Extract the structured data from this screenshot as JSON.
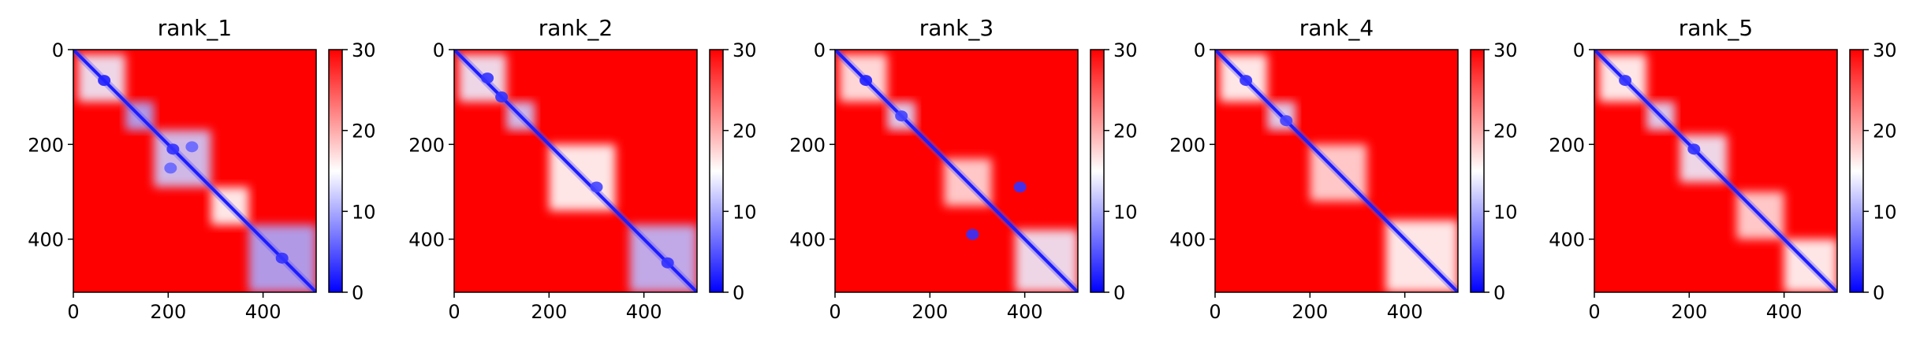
{
  "figure": {
    "colormap": {
      "name": "bwr",
      "low": "#0000ff",
      "mid": "#ffffff",
      "high": "#ff0000"
    }
  },
  "chart_data": [
    {
      "type": "heatmap",
      "title": "rank_1",
      "xlim": [
        0,
        512
      ],
      "ylim": [
        512,
        0
      ],
      "xticks": [
        0,
        200,
        400
      ],
      "yticks": [
        0,
        200,
        400
      ],
      "colorbar": {
        "range": [
          0,
          30
        ],
        "ticks": [
          0,
          10,
          20,
          30
        ]
      },
      "low_value_blocks": [
        {
          "x": [
            10,
            110
          ],
          "y": [
            10,
            110
          ],
          "level": 14
        },
        {
          "x": [
            110,
            170
          ],
          "y": [
            110,
            170
          ],
          "level": 10
        },
        {
          "x": [
            170,
            290
          ],
          "y": [
            170,
            290
          ],
          "level": 12
        },
        {
          "x": [
            290,
            370
          ],
          "y": [
            290,
            370
          ],
          "level": 15
        },
        {
          "x": [
            370,
            512
          ],
          "y": [
            370,
            512
          ],
          "level": 10
        }
      ],
      "low_value_spots": [
        {
          "x": 65,
          "y": 65,
          "level": 2
        },
        {
          "x": 210,
          "y": 210,
          "level": 3
        },
        {
          "x": 250,
          "y": 205,
          "level": 6
        },
        {
          "x": 205,
          "y": 250,
          "level": 6
        },
        {
          "x": 440,
          "y": 440,
          "level": 3
        }
      ]
    },
    {
      "type": "heatmap",
      "title": "rank_2",
      "xlim": [
        0,
        512
      ],
      "ylim": [
        512,
        0
      ],
      "xticks": [
        0,
        200,
        400
      ],
      "yticks": [
        0,
        200,
        400
      ],
      "colorbar": {
        "range": [
          0,
          30
        ],
        "ticks": [
          0,
          10,
          20,
          30
        ]
      },
      "low_value_blocks": [
        {
          "x": [
            10,
            110
          ],
          "y": [
            10,
            110
          ],
          "level": 14
        },
        {
          "x": [
            110,
            170
          ],
          "y": [
            110,
            170
          ],
          "level": 12
        },
        {
          "x": [
            200,
            340
          ],
          "y": [
            200,
            340
          ],
          "level": 15
        },
        {
          "x": [
            370,
            512
          ],
          "y": [
            370,
            512
          ],
          "level": 11
        }
      ],
      "low_value_spots": [
        {
          "x": 70,
          "y": 60,
          "level": 3
        },
        {
          "x": 100,
          "y": 100,
          "level": 3
        },
        {
          "x": 300,
          "y": 290,
          "level": 4
        },
        {
          "x": 450,
          "y": 450,
          "level": 3
        }
      ]
    },
    {
      "type": "heatmap",
      "title": "rank_3",
      "xlim": [
        0,
        512
      ],
      "ylim": [
        512,
        0
      ],
      "xticks": [
        0,
        200,
        400
      ],
      "yticks": [
        0,
        200,
        400
      ],
      "colorbar": {
        "range": [
          0,
          30
        ],
        "ticks": [
          0,
          10,
          20,
          30
        ]
      },
      "low_value_blocks": [
        {
          "x": [
            10,
            110
          ],
          "y": [
            10,
            110
          ],
          "level": 16
        },
        {
          "x": [
            110,
            170
          ],
          "y": [
            110,
            170
          ],
          "level": 13
        },
        {
          "x": [
            230,
            330
          ],
          "y": [
            230,
            330
          ],
          "level": 17
        },
        {
          "x": [
            380,
            512
          ],
          "y": [
            380,
            512
          ],
          "level": 14
        }
      ],
      "low_value_spots": [
        {
          "x": 65,
          "y": 65,
          "level": 2
        },
        {
          "x": 390,
          "y": 290,
          "level": 3
        },
        {
          "x": 290,
          "y": 390,
          "level": 3
        },
        {
          "x": 140,
          "y": 140,
          "level": 4
        }
      ]
    },
    {
      "type": "heatmap",
      "title": "rank_4",
      "xlim": [
        0,
        512
      ],
      "ylim": [
        512,
        0
      ],
      "xticks": [
        0,
        200,
        400
      ],
      "yticks": [
        0,
        200,
        400
      ],
      "colorbar": {
        "range": [
          0,
          30
        ],
        "ticks": [
          0,
          10,
          20,
          30
        ]
      },
      "low_value_blocks": [
        {
          "x": [
            10,
            110
          ],
          "y": [
            10,
            110
          ],
          "level": 15
        },
        {
          "x": [
            110,
            170
          ],
          "y": [
            110,
            170
          ],
          "level": 13
        },
        {
          "x": [
            200,
            320
          ],
          "y": [
            200,
            320
          ],
          "level": 17
        },
        {
          "x": [
            360,
            512
          ],
          "y": [
            360,
            512
          ],
          "level": 15
        }
      ],
      "low_value_spots": [
        {
          "x": 65,
          "y": 65,
          "level": 3
        },
        {
          "x": 150,
          "y": 150,
          "level": 4
        }
      ]
    },
    {
      "type": "heatmap",
      "title": "rank_5",
      "xlim": [
        0,
        512
      ],
      "ylim": [
        512,
        0
      ],
      "xticks": [
        0,
        200,
        400
      ],
      "yticks": [
        0,
        200,
        400
      ],
      "colorbar": {
        "range": [
          0,
          30
        ],
        "ticks": [
          0,
          10,
          20,
          30
        ]
      },
      "low_value_blocks": [
        {
          "x": [
            10,
            110
          ],
          "y": [
            10,
            110
          ],
          "level": 15
        },
        {
          "x": [
            110,
            170
          ],
          "y": [
            110,
            170
          ],
          "level": 13
        },
        {
          "x": [
            180,
            280
          ],
          "y": [
            180,
            280
          ],
          "level": 14
        },
        {
          "x": [
            300,
            400
          ],
          "y": [
            300,
            400
          ],
          "level": 17
        },
        {
          "x": [
            400,
            512
          ],
          "y": [
            400,
            512
          ],
          "level": 15
        }
      ],
      "low_value_spots": [
        {
          "x": 65,
          "y": 65,
          "level": 3
        },
        {
          "x": 210,
          "y": 210,
          "level": 3
        }
      ]
    }
  ]
}
